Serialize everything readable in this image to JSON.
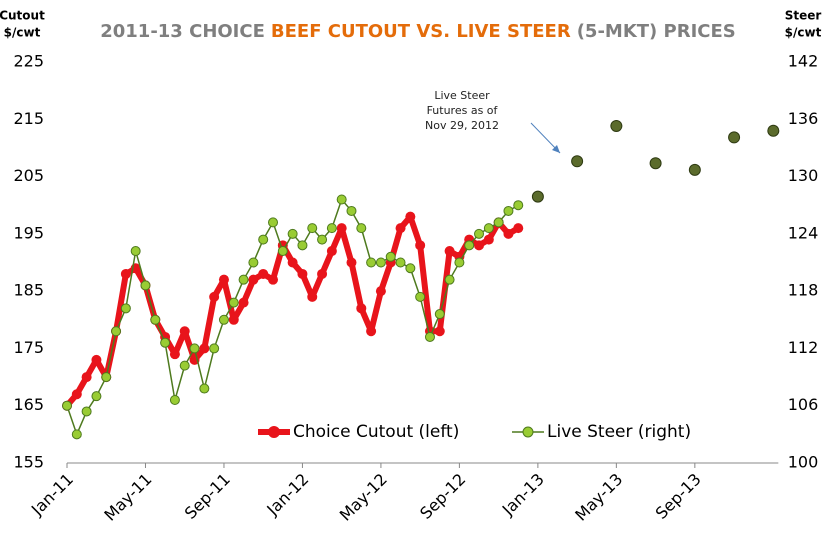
{
  "chart_data": {
    "type": "line",
    "title": [
      "2011-13 CHOICE",
      "BEEF CUTOUT VS. LIVE STEER",
      "(5-MKT) PRICES"
    ],
    "title_colors": [
      "#7f7f7f",
      "#e46c0a",
      "#7f7f7f"
    ],
    "ylabel": [
      "Cutout",
      "$/cwt"
    ],
    "y2label": [
      "Steer",
      "$/cwt"
    ],
    "annotation": [
      "Live Steer",
      "Futures as of",
      "Nov 29, 2012"
    ],
    "categories": [
      "Jan-11",
      null,
      null,
      null,
      null,
      null,
      null,
      null,
      "May-11",
      null,
      null,
      null,
      null,
      null,
      null,
      null,
      "Sep-11",
      null,
      null,
      null,
      null,
      null,
      null,
      null,
      "Jan-12",
      null,
      null,
      null,
      null,
      null,
      null,
      null,
      "May-12",
      null,
      null,
      null,
      null,
      null,
      null,
      null,
      "Sep-12",
      null,
      null,
      null,
      null,
      null,
      null,
      null,
      "Jan-13",
      null,
      null,
      null,
      null,
      null,
      null,
      null,
      "May-13",
      null,
      null,
      null,
      null,
      null,
      null,
      null,
      "Sep-13",
      null,
      null,
      null,
      null,
      null,
      null,
      null,
      null
    ],
    "ylim": [
      155,
      225
    ],
    "yticks": [
      155,
      165,
      175,
      185,
      195,
      205,
      215,
      225
    ],
    "y2lim": [
      100,
      142
    ],
    "y2ticks": [
      100,
      106,
      112,
      118,
      124,
      130,
      136,
      142
    ],
    "grid": false,
    "series": [
      {
        "name": "Choice Cutout (left)",
        "color": "#e8141b",
        "axis": "y",
        "values": [
          165,
          167,
          170,
          173,
          170,
          178,
          188,
          189,
          186,
          180,
          177,
          174,
          178,
          173,
          175,
          184,
          187,
          180,
          183,
          187,
          188,
          187,
          193,
          190,
          188,
          184,
          188,
          192,
          196,
          190,
          182,
          178,
          185,
          190,
          196,
          198,
          193,
          178,
          178,
          192,
          191,
          194,
          193,
          194,
          197,
          195,
          196,
          null,
          null,
          null,
          null,
          null,
          null,
          null,
          null,
          null,
          null,
          null,
          null,
          null,
          null,
          null,
          null,
          null,
          null,
          null,
          null,
          null,
          null,
          null,
          null,
          null,
          null
        ]
      },
      {
        "name": "Live Steer (right)",
        "color": "#99cc33",
        "axis": "y2",
        "values": [
          106,
          103,
          105.4,
          107,
          109,
          113.8,
          116.2,
          122.2,
          118.6,
          115,
          112.6,
          106.6,
          110.2,
          112,
          107.8,
          112,
          115,
          116.8,
          119.2,
          121,
          123.4,
          125.2,
          122.2,
          124,
          122.8,
          124.6,
          123.4,
          124.6,
          127.6,
          126.4,
          124.6,
          121,
          121,
          121.6,
          121,
          120.4,
          117.4,
          113.2,
          115.6,
          119.2,
          121,
          122.8,
          124,
          124.6,
          125.2,
          126.4,
          127,
          null,
          null,
          null,
          null,
          null,
          null,
          null,
          null,
          null,
          null,
          null,
          null,
          null,
          null,
          null,
          null,
          null,
          null,
          null,
          null,
          null,
          null,
          null,
          null,
          null,
          null
        ]
      },
      {
        "color": "#5b6b2c",
        "axis": "y2",
        "values": [
          null,
          null,
          null,
          null,
          null,
          null,
          null,
          null,
          null,
          null,
          null,
          null,
          null,
          null,
          null,
          null,
          null,
          null,
          null,
          null,
          null,
          null,
          null,
          null,
          null,
          null,
          null,
          null,
          null,
          null,
          null,
          null,
          null,
          null,
          null,
          null,
          null,
          null,
          null,
          null,
          null,
          null,
          null,
          null,
          null,
          null,
          null,
          null,
          127.9,
          null,
          null,
          null,
          131.6,
          null,
          null,
          null,
          135.3,
          null,
          null,
          null,
          131.4,
          null,
          null,
          null,
          130.7,
          null,
          null,
          null,
          134.1,
          null,
          null,
          null,
          134.8
        ]
      }
    ]
  }
}
